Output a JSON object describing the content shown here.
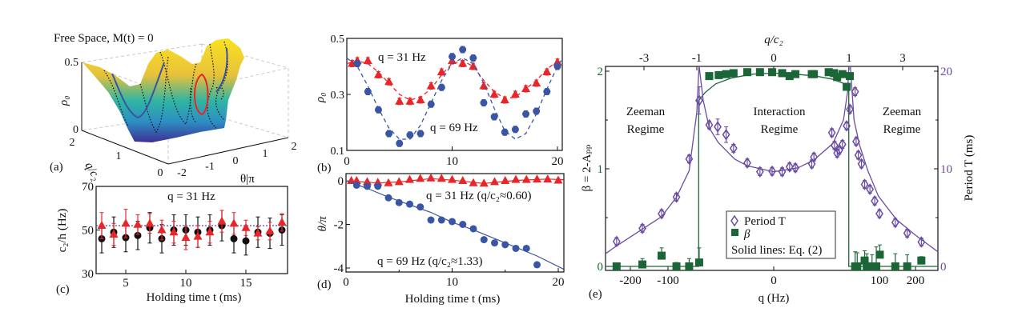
{
  "colors": {
    "red": "#e8262a",
    "blue": "#3a55a4",
    "green": "#1b6636",
    "purple": "#6b4ca3",
    "black": "#111111"
  },
  "chart_data": [
    {
      "panel": "(a)",
      "type": "surface",
      "title": "Free Space, M(t) = 0",
      "xlabel": "θ|π",
      "ylabel": "q/c₂",
      "zlabel": "ρ₀",
      "xticks": [
        "-2",
        "-1",
        "0",
        "1",
        "2"
      ],
      "yticks": [
        "0",
        "1",
        "2"
      ],
      "zticks": [
        "0",
        "0.5"
      ],
      "colormap": "yellow-teal-purple",
      "grid": true
    },
    {
      "panel": "(b)",
      "type": "scatter",
      "ylabel": "ρ₀",
      "xlim": [
        0,
        20.5
      ],
      "ylim": [
        0.1,
        0.5
      ],
      "xticks": [
        "0",
        "10",
        "20"
      ],
      "yticks": [
        "0.1",
        "0.3",
        "0.5"
      ],
      "series": [
        {
          "name": "q = 31 Hz",
          "marker": "triangle",
          "color": "#e8262a",
          "x": [
            0.5,
            1,
            2,
            3,
            4,
            5,
            6,
            7,
            8,
            9,
            10,
            11,
            12,
            13,
            14,
            15,
            16,
            17,
            18,
            19,
            20
          ],
          "y": [
            0.41,
            0.42,
            0.42,
            0.37,
            0.345,
            0.275,
            0.275,
            0.28,
            0.33,
            0.38,
            0.42,
            0.41,
            0.4,
            0.33,
            0.3,
            0.28,
            0.3,
            0.32,
            0.34,
            0.38,
            0.415
          ],
          "fit": [
            [
              0,
              0.41
            ],
            [
              1,
              0.42
            ],
            [
              2,
              0.41
            ],
            [
              3,
              0.38
            ],
            [
              4,
              0.34
            ],
            [
              5,
              0.3
            ],
            [
              6,
              0.28
            ],
            [
              7,
              0.29
            ],
            [
              8,
              0.32
            ],
            [
              9,
              0.37
            ],
            [
              10,
              0.41
            ],
            [
              11,
              0.42
            ],
            [
              12,
              0.4
            ],
            [
              13,
              0.35
            ],
            [
              14,
              0.31
            ],
            [
              15,
              0.285
            ],
            [
              16,
              0.29
            ],
            [
              17,
              0.32
            ],
            [
              18,
              0.35
            ],
            [
              19,
              0.39
            ],
            [
              20,
              0.42
            ]
          ]
        },
        {
          "name": "q = 69 Hz",
          "marker": "circle",
          "color": "#3a55a4",
          "x": [
            1,
            2,
            3,
            4,
            5,
            6,
            7,
            8,
            9,
            10,
            11,
            12,
            13,
            14,
            15,
            16,
            17,
            18,
            19,
            20
          ],
          "y": [
            0.41,
            0.31,
            0.245,
            0.16,
            0.125,
            0.155,
            0.16,
            0.265,
            0.325,
            0.435,
            0.46,
            0.43,
            0.27,
            0.22,
            0.165,
            0.175,
            0.23,
            0.24,
            0.31,
            0.4
          ],
          "fit": [
            [
              0,
              0.43
            ],
            [
              1,
              0.4
            ],
            [
              2,
              0.33
            ],
            [
              3,
              0.25
            ],
            [
              4,
              0.18
            ],
            [
              5,
              0.14
            ],
            [
              6,
              0.14
            ],
            [
              7,
              0.19
            ],
            [
              8,
              0.27
            ],
            [
              9,
              0.35
            ],
            [
              10,
              0.41
            ],
            [
              11,
              0.43
            ],
            [
              12,
              0.41
            ],
            [
              13,
              0.34
            ],
            [
              14,
              0.25
            ],
            [
              15,
              0.17
            ],
            [
              16,
              0.14
            ],
            [
              17,
              0.16
            ],
            [
              18,
              0.23
            ],
            [
              19,
              0.32
            ],
            [
              20,
              0.4
            ],
            [
              20.5,
              0.43
            ]
          ]
        }
      ]
    },
    {
      "panel": "(c)",
      "type": "scatter",
      "title": "q = 31 Hz",
      "xlabel": "Holding time t (ms)",
      "ylabel": "c₂/h (Hz)",
      "xlim": [
        2.5,
        18.5
      ],
      "ylim": [
        30,
        70
      ],
      "xticks": [
        "5",
        "10",
        "15"
      ],
      "yticks": [
        "30",
        "50",
        "70"
      ],
      "reference_line": 52,
      "series": [
        {
          "marker": "triangle",
          "color": "#e8262a",
          "x": [
            3,
            4,
            5,
            6,
            7,
            8,
            9,
            10,
            11,
            12,
            13,
            14,
            15,
            16,
            17,
            18
          ],
          "y": [
            52,
            48,
            53,
            52.5,
            53,
            50,
            49,
            46.5,
            47,
            49,
            54,
            53,
            51,
            48.5,
            49.5,
            53.5
          ],
          "err": [
            6,
            5,
            6.5,
            4.5,
            4.5,
            4.5,
            5,
            5.5,
            5,
            5,
            5,
            5,
            3.5,
            3,
            4,
            4
          ]
        },
        {
          "marker": "circle",
          "color": "#111111",
          "x": [
            3,
            4,
            5,
            6,
            7,
            8,
            9,
            10,
            11,
            12,
            13,
            14,
            15,
            16,
            17,
            18
          ],
          "y": [
            46,
            49,
            46.5,
            47.5,
            51,
            46,
            50,
            50,
            49,
            50,
            52,
            46,
            45,
            49,
            48.5,
            50
          ],
          "err": [
            6.5,
            7,
            6.5,
            6.5,
            7,
            6.5,
            7,
            7,
            7,
            7,
            7,
            6.5,
            6.5,
            7,
            7,
            7
          ]
        }
      ]
    },
    {
      "panel": "(d)",
      "type": "scatter",
      "xlabel": "Holding time t (ms)",
      "ylabel": "θ/π",
      "xlim": [
        0,
        20.5
      ],
      "ylim": [
        -4.2,
        0.33
      ],
      "xticks": [
        "0",
        "10",
        "20"
      ],
      "yticks": [
        "-4",
        "-2",
        "0"
      ],
      "series": [
        {
          "name": "q = 31 Hz (q/c₂≈0.60)",
          "marker": "triangle",
          "color": "#e8262a",
          "x": [
            0.5,
            1,
            2,
            3,
            4,
            5,
            6,
            7,
            8,
            9,
            10,
            11,
            12,
            13,
            14,
            15,
            16,
            17,
            18,
            19,
            20
          ],
          "y": [
            0,
            0,
            -0.05,
            -0.08,
            -0.1,
            -0.05,
            0.05,
            0.1,
            0.12,
            0.1,
            0.05,
            0,
            -0.1,
            -0.12,
            -0.05,
            0,
            0.05,
            0.05,
            0.07,
            0.07,
            0.02
          ],
          "fit": [
            [
              0,
              0
            ],
            [
              3,
              -0.1
            ],
            [
              5,
              -0.05
            ],
            [
              8,
              0.1
            ],
            [
              10,
              0.03
            ],
            [
              13,
              -0.12
            ],
            [
              16,
              0.02
            ],
            [
              19,
              0.08
            ],
            [
              20.5,
              0.05
            ]
          ]
        },
        {
          "name": "q = 69 Hz (q/c₂≈1.33)",
          "marker": "circle",
          "color": "#3a55a4",
          "x": [
            1,
            2,
            3,
            4,
            5,
            6,
            7,
            8,
            9,
            10,
            11,
            12,
            13,
            14,
            15,
            16,
            17,
            18
          ],
          "y": [
            -0.2,
            -0.25,
            -0.25,
            -0.78,
            -1.0,
            -1.07,
            -1.2,
            -1.8,
            -1.8,
            -1.87,
            -2.0,
            -2.2,
            -2.7,
            -2.85,
            -2.93,
            -3.1,
            -3.1,
            -3.85
          ],
          "fit": [
            [
              0,
              0
            ],
            [
              2,
              -0.35
            ],
            [
              4,
              -0.75
            ],
            [
              6,
              -1.1
            ],
            [
              8,
              -1.45
            ],
            [
              10,
              -1.9
            ],
            [
              12,
              -2.25
            ],
            [
              14,
              -2.65
            ],
            [
              16,
              -3.05
            ],
            [
              18,
              -3.45
            ],
            [
              20.5,
              -4.05
            ]
          ]
        }
      ]
    },
    {
      "panel": "(e)",
      "type": "scatter",
      "xlabel": "q (Hz)",
      "x2label": "q/c₂",
      "ylabel": "β = 2-Aₚₚ",
      "y2label": "Period T (ms)",
      "xlim": [
        -265,
        265
      ],
      "ylim": [
        0,
        2.05
      ],
      "y2lim": [
        0,
        20.5
      ],
      "x_scale": "piecewise (compressed for |q| > c₂)",
      "xticks": [
        "-200",
        "-100",
        "0",
        "100",
        "200"
      ],
      "x2ticks": [
        "-3",
        "-1",
        "0",
        "1",
        "3"
      ],
      "yticks": [
        "0",
        "1",
        "2"
      ],
      "y2ticks": [
        "0",
        "10",
        "20"
      ],
      "regions": [
        "Zeeman Regime",
        "Interaction Regime",
        "Zeeman Regime"
      ],
      "legend": {
        "placement": "bottom-center",
        "entries": [
          "Period T",
          "β"
        ],
        "note": "Solid lines: Eq. (2)"
      },
      "series": [
        {
          "name": "Period T",
          "axis": "right",
          "marker": "diamond-open",
          "color": "#6b4ca3",
          "x": [
            -236,
            -168,
            -117,
            -92,
            -80,
            -70.5,
            -61,
            -53,
            -45,
            -38,
            -25,
            -13,
            -1.5,
            8,
            15,
            20.5,
            36,
            38,
            55,
            57.5,
            60,
            62,
            65,
            69,
            72,
            77,
            78,
            80,
            83,
            86,
            91,
            95.5,
            100,
            144,
            177,
            217
          ],
          "y": [
            2.55,
            3.9,
            5.4,
            7.1,
            11.0,
            17.0,
            14.5,
            14.3,
            13.5,
            12.1,
            10.6,
            9.7,
            9.75,
            9.7,
            10.2,
            10.1,
            10.5,
            11.2,
            13.7,
            12.4,
            11.6,
            11.9,
            12.5,
            14.4,
            16.1,
            17.9,
            12.8,
            11.4,
            10.5,
            8.4,
            7.9,
            6.7,
            5.4,
            4.5,
            3.4,
            2.5
          ],
          "fit": [
            [
              -265,
              1.3
            ],
            [
              -236,
              2.1
            ],
            [
              -117,
              5.1
            ],
            [
              -92,
              7.1
            ],
            [
              -80,
              9.8
            ],
            [
              -72.7,
              15.8
            ],
            [
              -70.7,
              20.5
            ],
            null,
            [
              -70.5,
              20.5
            ],
            [
              -66.7,
              17
            ],
            [
              -61,
              14.2
            ],
            [
              -52.5,
              12.7
            ],
            [
              -37,
              11
            ],
            [
              -25,
              10.3
            ],
            [
              0,
              9.7
            ],
            [
              23,
              10.1
            ],
            [
              38,
              10.9
            ],
            [
              56,
              12.6
            ],
            [
              66,
              15
            ],
            [
              70,
              18
            ],
            [
              71,
              20.5
            ],
            null,
            [
              72.5,
              20.5
            ],
            [
              76,
              15
            ],
            [
              81,
              12.5
            ],
            [
              89,
              9.8
            ],
            [
              99,
              7.2
            ],
            [
              147,
              4.8
            ],
            [
              200,
              3.2
            ],
            [
              265,
              1.5
            ]
          ]
        },
        {
          "name": "β",
          "axis": "left",
          "marker": "square",
          "color": "#1b6636",
          "x": [
            -236,
            -168,
            -117,
            -92,
            -80,
            -70.5,
            -61,
            -52,
            -45,
            -38,
            -25,
            -13,
            -1.5,
            8,
            15,
            20.5,
            36,
            38,
            52,
            57,
            60,
            65,
            69,
            72,
            77,
            79,
            86,
            88,
            93,
            97,
            101,
            144,
            177,
            217
          ],
          "y": [
            0,
            0.02,
            0.11,
            0,
            0,
            0.04,
            1.95,
            1.96,
            1.97,
            1.98,
            1.99,
            1.99,
            1.99,
            1.98,
            1.95,
            1.97,
            1.97,
            1.97,
            1.99,
            1.98,
            1.94,
            1.97,
            1.84,
            1.95,
            0,
            0,
            0.06,
            0,
            0,
            0,
            0.12,
            0,
            0,
            0.06
          ],
          "err": [
            0.03,
            0.06,
            0.08,
            0.04,
            0.08,
            0.15,
            0,
            0,
            0,
            0,
            0,
            0,
            0,
            0,
            0,
            0,
            0,
            0,
            0,
            0,
            0,
            0,
            0,
            0,
            0.15,
            0.14,
            0.1,
            0.13,
            0.12,
            0.2,
            0.1,
            0.13,
            0.12,
            0.04
          ],
          "fit": [
            [
              -265,
              0
            ],
            [
              -71,
              0
            ],
            [
              -71,
              1.7
            ],
            [
              -65,
              1.78
            ],
            [
              -55,
              1.87
            ],
            [
              -40,
              1.93
            ],
            [
              -20,
              1.97
            ],
            [
              0,
              1.98
            ],
            [
              20,
              1.97
            ],
            [
              40,
              1.95
            ],
            [
              55,
              1.92
            ],
            [
              65,
              1.88
            ],
            [
              70,
              1.82
            ],
            [
              71,
              1.8
            ],
            [
              71,
              0
            ],
            [
              265,
              0
            ]
          ]
        }
      ]
    }
  ]
}
